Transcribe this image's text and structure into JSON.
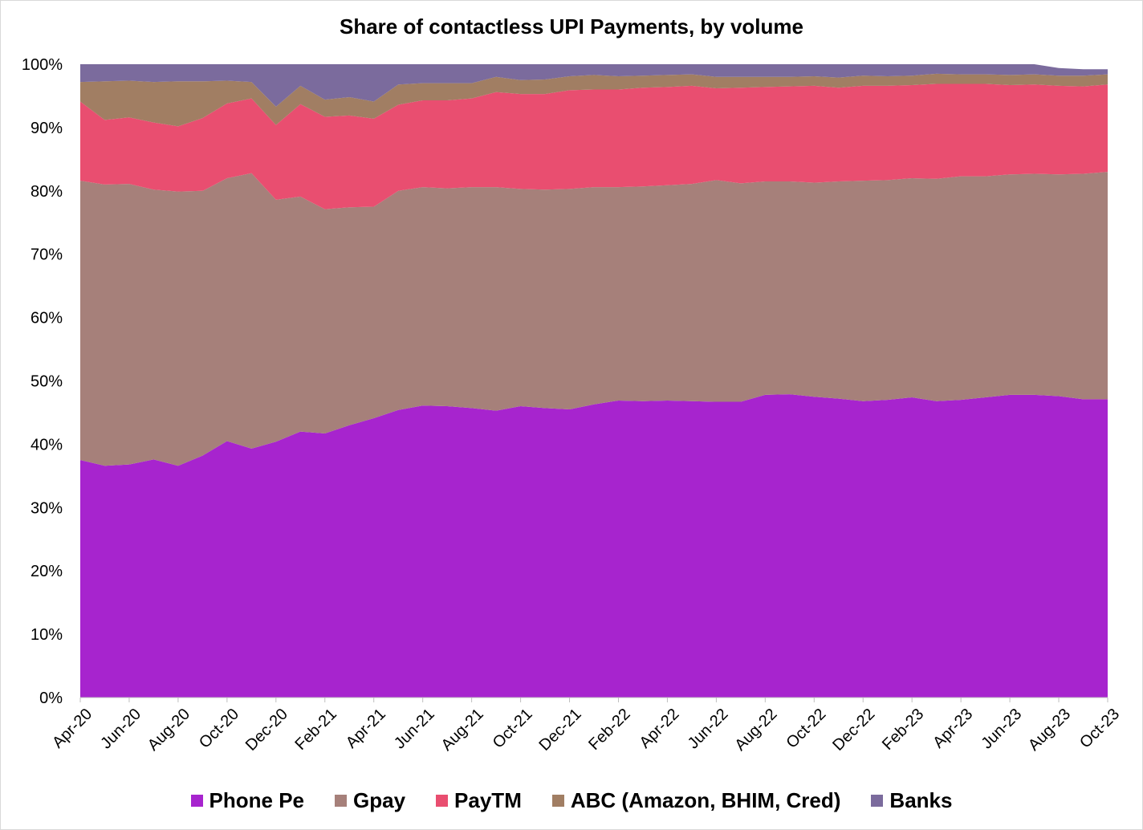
{
  "chart_data": {
    "type": "area",
    "stacked": true,
    "title": "Share of contactless UPI Payments, by volume",
    "xlabel": "",
    "ylabel": "",
    "ylim": [
      0,
      100
    ],
    "y_ticks": [
      "0%",
      "10%",
      "20%",
      "30%",
      "40%",
      "50%",
      "60%",
      "70%",
      "80%",
      "90%",
      "100%"
    ],
    "x_tick_labels": [
      "Apr-20",
      "Jun-20",
      "Aug-20",
      "Oct-20",
      "Dec-20",
      "Feb-21",
      "Apr-21",
      "Jun-21",
      "Aug-21",
      "Oct-21",
      "Dec-21",
      "Feb-22",
      "Apr-22",
      "Jun-22",
      "Aug-22",
      "Oct-22",
      "Dec-22",
      "Feb-23",
      "Apr-23",
      "Jun-23",
      "Aug-23",
      "Oct-23"
    ],
    "categories": [
      "Apr-20",
      "May-20",
      "Jun-20",
      "Jul-20",
      "Aug-20",
      "Sep-20",
      "Oct-20",
      "Nov-20",
      "Dec-20",
      "Jan-21",
      "Feb-21",
      "Mar-21",
      "Apr-21",
      "May-21",
      "Jun-21",
      "Jul-21",
      "Aug-21",
      "Sep-21",
      "Oct-21",
      "Nov-21",
      "Dec-21",
      "Jan-22",
      "Feb-22",
      "Mar-22",
      "Apr-22",
      "May-22",
      "Jun-22",
      "Jul-22",
      "Aug-22",
      "Sep-22",
      "Oct-22",
      "Nov-22",
      "Dec-22",
      "Jan-23",
      "Feb-23",
      "Mar-23",
      "Apr-23",
      "May-23",
      "Jun-23",
      "Jul-23",
      "Aug-23",
      "Sep-23",
      "Oct-23"
    ],
    "series": [
      {
        "name": "Phone Pe",
        "color": "#a724ce",
        "values": [
          37.5,
          36.6,
          36.8,
          37.6,
          36.6,
          38.2,
          40.5,
          39.3,
          40.4,
          42.0,
          41.7,
          43.0,
          44.1,
          45.4,
          46.1,
          46.0,
          45.7,
          45.3,
          46.0,
          45.7,
          45.5,
          46.3,
          46.9,
          46.8,
          46.9,
          46.8,
          46.7,
          46.7,
          47.8,
          47.9,
          47.5,
          47.2,
          46.8,
          47.0,
          47.4,
          46.8,
          47.0,
          47.4,
          47.8,
          47.8,
          47.6,
          47.1,
          47.1
        ]
      },
      {
        "name": "Gpay",
        "color": "#a6807a",
        "values": [
          44.1,
          44.4,
          44.3,
          42.6,
          43.3,
          41.8,
          41.5,
          43.5,
          38.2,
          37.1,
          35.4,
          34.4,
          33.4,
          34.6,
          34.5,
          34.4,
          34.9,
          35.3,
          34.3,
          34.5,
          34.8,
          34.3,
          33.7,
          33.9,
          34.0,
          34.3,
          35.0,
          34.5,
          33.7,
          33.6,
          33.8,
          34.3,
          34.8,
          34.7,
          34.6,
          35.1,
          35.3,
          34.9,
          34.8,
          34.9,
          35.0,
          35.6,
          35.9
        ]
      },
      {
        "name": "PayTM",
        "color": "#e94e70",
        "values": [
          12.5,
          10.2,
          10.5,
          10.6,
          10.3,
          11.5,
          11.8,
          11.8,
          11.8,
          14.6,
          14.6,
          14.5,
          13.9,
          13.6,
          13.7,
          13.9,
          14.0,
          15.0,
          15.0,
          15.1,
          15.6,
          15.4,
          15.4,
          15.6,
          15.5,
          15.5,
          14.5,
          15.1,
          14.9,
          15.0,
          15.3,
          14.8,
          15.0,
          14.9,
          14.7,
          15.0,
          14.6,
          14.6,
          14.1,
          14.1,
          14.0,
          13.8,
          13.8
        ]
      },
      {
        "name": "ABC (Amazon, BHIM, Cred)",
        "color": "#a17e63",
        "values": [
          3.1,
          6.1,
          5.8,
          6.4,
          7.1,
          5.8,
          3.6,
          2.6,
          2.9,
          2.9,
          2.7,
          2.9,
          2.7,
          3.2,
          2.7,
          2.7,
          2.4,
          2.4,
          2.2,
          2.3,
          2.2,
          2.3,
          2.1,
          1.9,
          1.9,
          1.8,
          1.8,
          1.7,
          1.6,
          1.5,
          1.5,
          1.6,
          1.6,
          1.5,
          1.5,
          1.6,
          1.5,
          1.5,
          1.6,
          1.6,
          1.6,
          1.7,
          1.6
        ]
      },
      {
        "name": "Banks",
        "color": "#7b6b9d",
        "values": [
          2.8,
          2.7,
          2.6,
          2.8,
          2.7,
          2.7,
          2.6,
          2.8,
          6.7,
          3.4,
          5.6,
          5.2,
          5.9,
          3.2,
          3.0,
          3.0,
          3.0,
          2.0,
          2.5,
          2.4,
          1.9,
          1.7,
          1.9,
          1.8,
          1.7,
          1.6,
          2.0,
          2.0,
          2.0,
          2.0,
          1.9,
          2.1,
          1.8,
          1.9,
          1.8,
          1.5,
          1.6,
          1.6,
          1.7,
          1.6,
          1.2,
          1.0,
          0.8
        ]
      }
    ],
    "legend_position": "bottom",
    "grid": false
  }
}
